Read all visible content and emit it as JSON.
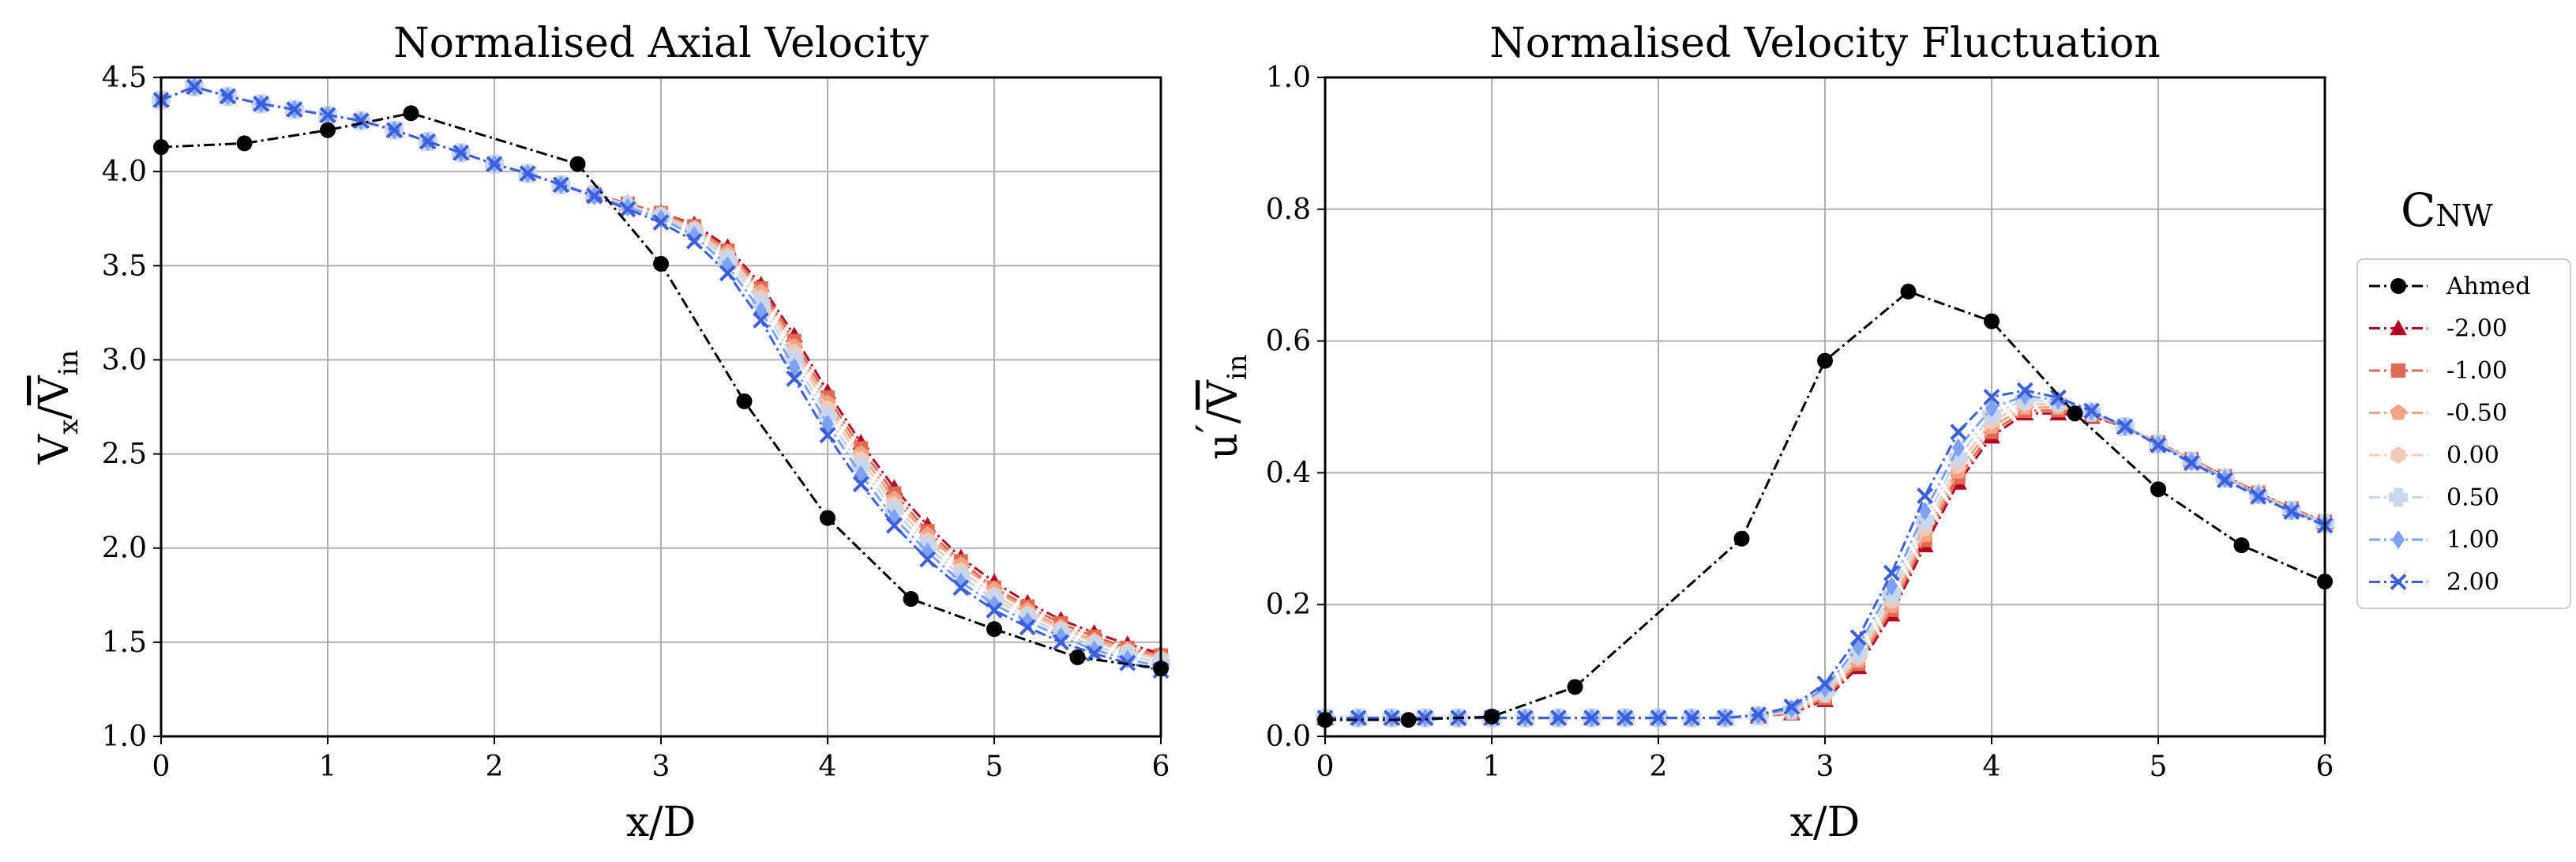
{
  "chart_data": [
    {
      "type": "line",
      "title": "Normalised Axial Velocity",
      "xlabel": "x/D",
      "ylabel": {
        "main": "V",
        "sub": "x",
        "mid": "/",
        "over": "V",
        "over_sub": "in"
      },
      "xlim": [
        0,
        6
      ],
      "ylim": [
        1.0,
        4.5
      ],
      "xticks": [
        "0",
        "1",
        "2",
        "3",
        "4",
        "5",
        "6"
      ],
      "yticks": [
        "1.0",
        "1.5",
        "2.0",
        "2.5",
        "3.0",
        "3.5",
        "4.0",
        "4.5"
      ],
      "grid": true,
      "reference": {
        "name": "Ahmed",
        "x": [
          0,
          0.5,
          1.0,
          1.5,
          2.5,
          3.0,
          3.5,
          4.0,
          4.5,
          5.0,
          5.5,
          6.0
        ],
        "y": [
          4.13,
          4.15,
          4.22,
          4.31,
          4.04,
          3.51,
          2.78,
          2.16,
          1.73,
          1.57,
          1.42,
          1.36
        ]
      },
      "x": [
        0,
        0.2,
        0.4,
        0.6,
        0.8,
        1.0,
        1.2,
        1.4,
        1.6,
        1.8,
        2.0,
        2.2,
        2.4,
        2.6,
        2.8,
        3.0,
        3.2,
        3.4,
        3.6,
        3.8,
        4.0,
        4.2,
        4.4,
        4.6,
        4.8,
        5.0,
        5.2,
        5.4,
        5.6,
        5.8,
        6.0
      ],
      "series": [
        {
          "name": "-2.00",
          "values": [
            4.38,
            4.45,
            4.4,
            4.36,
            4.33,
            4.3,
            4.27,
            4.22,
            4.16,
            4.1,
            4.04,
            3.99,
            3.93,
            3.88,
            3.83,
            3.78,
            3.72,
            3.6,
            3.4,
            3.13,
            2.83,
            2.56,
            2.32,
            2.12,
            1.95,
            1.82,
            1.71,
            1.62,
            1.55,
            1.49,
            1.44
          ]
        },
        {
          "name": "-1.00",
          "values": [
            4.38,
            4.45,
            4.4,
            4.36,
            4.33,
            4.3,
            4.27,
            4.22,
            4.16,
            4.1,
            4.04,
            3.99,
            3.93,
            3.88,
            3.83,
            3.78,
            3.71,
            3.58,
            3.38,
            3.1,
            2.8,
            2.53,
            2.29,
            2.09,
            1.93,
            1.79,
            1.69,
            1.6,
            1.53,
            1.47,
            1.43
          ]
        },
        {
          "name": "-0.50",
          "values": [
            4.38,
            4.45,
            4.4,
            4.36,
            4.33,
            4.3,
            4.27,
            4.22,
            4.16,
            4.1,
            4.04,
            3.99,
            3.93,
            3.88,
            3.82,
            3.77,
            3.7,
            3.57,
            3.36,
            3.07,
            2.77,
            2.5,
            2.26,
            2.07,
            1.91,
            1.78,
            1.67,
            1.58,
            1.51,
            1.46,
            1.42
          ]
        },
        {
          "name": "0.00",
          "values": [
            4.38,
            4.45,
            4.4,
            4.36,
            4.33,
            4.3,
            4.27,
            4.22,
            4.16,
            4.1,
            4.04,
            3.99,
            3.93,
            3.88,
            3.82,
            3.77,
            3.69,
            3.55,
            3.33,
            3.04,
            2.74,
            2.47,
            2.23,
            2.04,
            1.88,
            1.75,
            1.65,
            1.57,
            1.5,
            1.45,
            1.41
          ]
        },
        {
          "name": "0.50",
          "values": [
            4.38,
            4.45,
            4.4,
            4.36,
            4.33,
            4.3,
            4.27,
            4.22,
            4.16,
            4.1,
            4.04,
            3.99,
            3.93,
            3.88,
            3.82,
            3.76,
            3.68,
            3.53,
            3.3,
            3.0,
            2.7,
            2.43,
            2.2,
            2.01,
            1.85,
            1.73,
            1.63,
            1.55,
            1.48,
            1.43,
            1.39
          ]
        },
        {
          "name": "1.00",
          "values": [
            4.38,
            4.45,
            4.4,
            4.36,
            4.33,
            4.3,
            4.27,
            4.22,
            4.16,
            4.1,
            4.04,
            3.99,
            3.93,
            3.87,
            3.81,
            3.75,
            3.66,
            3.5,
            3.26,
            2.96,
            2.66,
            2.39,
            2.16,
            1.98,
            1.82,
            1.7,
            1.61,
            1.53,
            1.46,
            1.41,
            1.37
          ]
        },
        {
          "name": "2.00",
          "values": [
            4.38,
            4.45,
            4.4,
            4.36,
            4.33,
            4.3,
            4.27,
            4.22,
            4.16,
            4.1,
            4.04,
            3.99,
            3.93,
            3.87,
            3.8,
            3.73,
            3.63,
            3.46,
            3.21,
            2.9,
            2.6,
            2.34,
            2.12,
            1.94,
            1.79,
            1.67,
            1.58,
            1.5,
            1.44,
            1.39,
            1.35
          ]
        }
      ]
    },
    {
      "type": "line",
      "title": "Normalised Velocity Fluctuation",
      "xlabel": "x/D",
      "ylabel": {
        "main": "u",
        "prime": "′",
        "mid": "/",
        "over": "V",
        "over_sub": "in"
      },
      "xlim": [
        0,
        6
      ],
      "ylim": [
        0.0,
        1.0
      ],
      "xticks": [
        "0",
        "1",
        "2",
        "3",
        "4",
        "5",
        "6"
      ],
      "yticks": [
        "0.0",
        "0.2",
        "0.4",
        "0.6",
        "0.8",
        "1.0"
      ],
      "grid": true,
      "reference": {
        "name": "Ahmed",
        "x": [
          0,
          0.5,
          1.0,
          1.5,
          2.5,
          3.0,
          3.5,
          4.0,
          4.5,
          5.0,
          5.5,
          6.0
        ],
        "y": [
          0.025,
          0.025,
          0.03,
          0.075,
          0.3,
          0.57,
          0.675,
          0.63,
          0.49,
          0.375,
          0.29,
          0.235
        ]
      },
      "x": [
        0,
        0.2,
        0.4,
        0.6,
        0.8,
        1.0,
        1.2,
        1.4,
        1.6,
        1.8,
        2.0,
        2.2,
        2.4,
        2.6,
        2.8,
        3.0,
        3.2,
        3.4,
        3.6,
        3.8,
        4.0,
        4.2,
        4.4,
        4.6,
        4.8,
        5.0,
        5.2,
        5.4,
        5.6,
        5.8,
        6.0
      ],
      "series": [
        {
          "name": "-2.00",
          "values": [
            0.028,
            0.028,
            0.028,
            0.028,
            0.028,
            0.028,
            0.028,
            0.028,
            0.028,
            0.028,
            0.028,
            0.028,
            0.028,
            0.03,
            0.035,
            0.055,
            0.105,
            0.185,
            0.29,
            0.385,
            0.455,
            0.49,
            0.49,
            0.485,
            0.47,
            0.445,
            0.42,
            0.395,
            0.37,
            0.345,
            0.325
          ]
        },
        {
          "name": "-1.00",
          "values": [
            0.028,
            0.028,
            0.028,
            0.028,
            0.028,
            0.028,
            0.028,
            0.028,
            0.028,
            0.028,
            0.028,
            0.028,
            0.028,
            0.03,
            0.036,
            0.058,
            0.11,
            0.192,
            0.298,
            0.393,
            0.462,
            0.494,
            0.495,
            0.487,
            0.47,
            0.446,
            0.421,
            0.395,
            0.37,
            0.346,
            0.326
          ]
        },
        {
          "name": "-0.50",
          "values": [
            0.028,
            0.028,
            0.028,
            0.028,
            0.028,
            0.028,
            0.028,
            0.028,
            0.028,
            0.028,
            0.028,
            0.028,
            0.028,
            0.03,
            0.037,
            0.061,
            0.115,
            0.198,
            0.306,
            0.402,
            0.47,
            0.499,
            0.499,
            0.489,
            0.47,
            0.446,
            0.42,
            0.394,
            0.369,
            0.345,
            0.325
          ]
        },
        {
          "name": "0.00",
          "values": [
            0.028,
            0.028,
            0.028,
            0.028,
            0.028,
            0.028,
            0.028,
            0.028,
            0.028,
            0.028,
            0.028,
            0.028,
            0.028,
            0.031,
            0.038,
            0.064,
            0.12,
            0.206,
            0.316,
            0.412,
            0.478,
            0.505,
            0.503,
            0.49,
            0.47,
            0.445,
            0.419,
            0.393,
            0.368,
            0.344,
            0.324
          ]
        },
        {
          "name": "0.50",
          "values": [
            0.028,
            0.028,
            0.028,
            0.028,
            0.028,
            0.028,
            0.028,
            0.028,
            0.028,
            0.028,
            0.028,
            0.028,
            0.028,
            0.031,
            0.04,
            0.068,
            0.127,
            0.216,
            0.328,
            0.424,
            0.488,
            0.511,
            0.507,
            0.492,
            0.47,
            0.444,
            0.418,
            0.392,
            0.367,
            0.343,
            0.323
          ]
        },
        {
          "name": "1.00",
          "values": [
            0.028,
            0.028,
            0.028,
            0.028,
            0.028,
            0.028,
            0.028,
            0.028,
            0.028,
            0.028,
            0.028,
            0.028,
            0.028,
            0.032,
            0.042,
            0.073,
            0.136,
            0.228,
            0.342,
            0.438,
            0.498,
            0.517,
            0.51,
            0.493,
            0.47,
            0.443,
            0.417,
            0.391,
            0.366,
            0.342,
            0.322
          ]
        },
        {
          "name": "2.00",
          "values": [
            0.028,
            0.028,
            0.028,
            0.028,
            0.028,
            0.028,
            0.028,
            0.028,
            0.028,
            0.028,
            0.028,
            0.028,
            0.028,
            0.033,
            0.045,
            0.08,
            0.15,
            0.248,
            0.365,
            0.462,
            0.515,
            0.525,
            0.514,
            0.494,
            0.47,
            0.442,
            0.415,
            0.389,
            0.364,
            0.341,
            0.32
          ]
        }
      ]
    }
  ],
  "legend": {
    "title": "C",
    "title_sub": "NW",
    "position": "right",
    "entries": [
      {
        "label": "Ahmed",
        "color": "#000000",
        "marker": "circle"
      },
      {
        "label": "-2.00",
        "color": "#b40426",
        "marker": "triangle"
      },
      {
        "label": "-1.00",
        "color": "#e26952",
        "marker": "square"
      },
      {
        "label": "-0.50",
        "color": "#f6a385",
        "marker": "pentagon"
      },
      {
        "label": "0.00",
        "color": "#f2cbb7",
        "marker": "hexagon"
      },
      {
        "label": "0.50",
        "color": "#c7d7f0",
        "marker": "plus"
      },
      {
        "label": "1.00",
        "color": "#7ea1f5",
        "marker": "diamond"
      },
      {
        "label": "2.00",
        "color": "#3b5ee0",
        "marker": "x"
      }
    ]
  }
}
